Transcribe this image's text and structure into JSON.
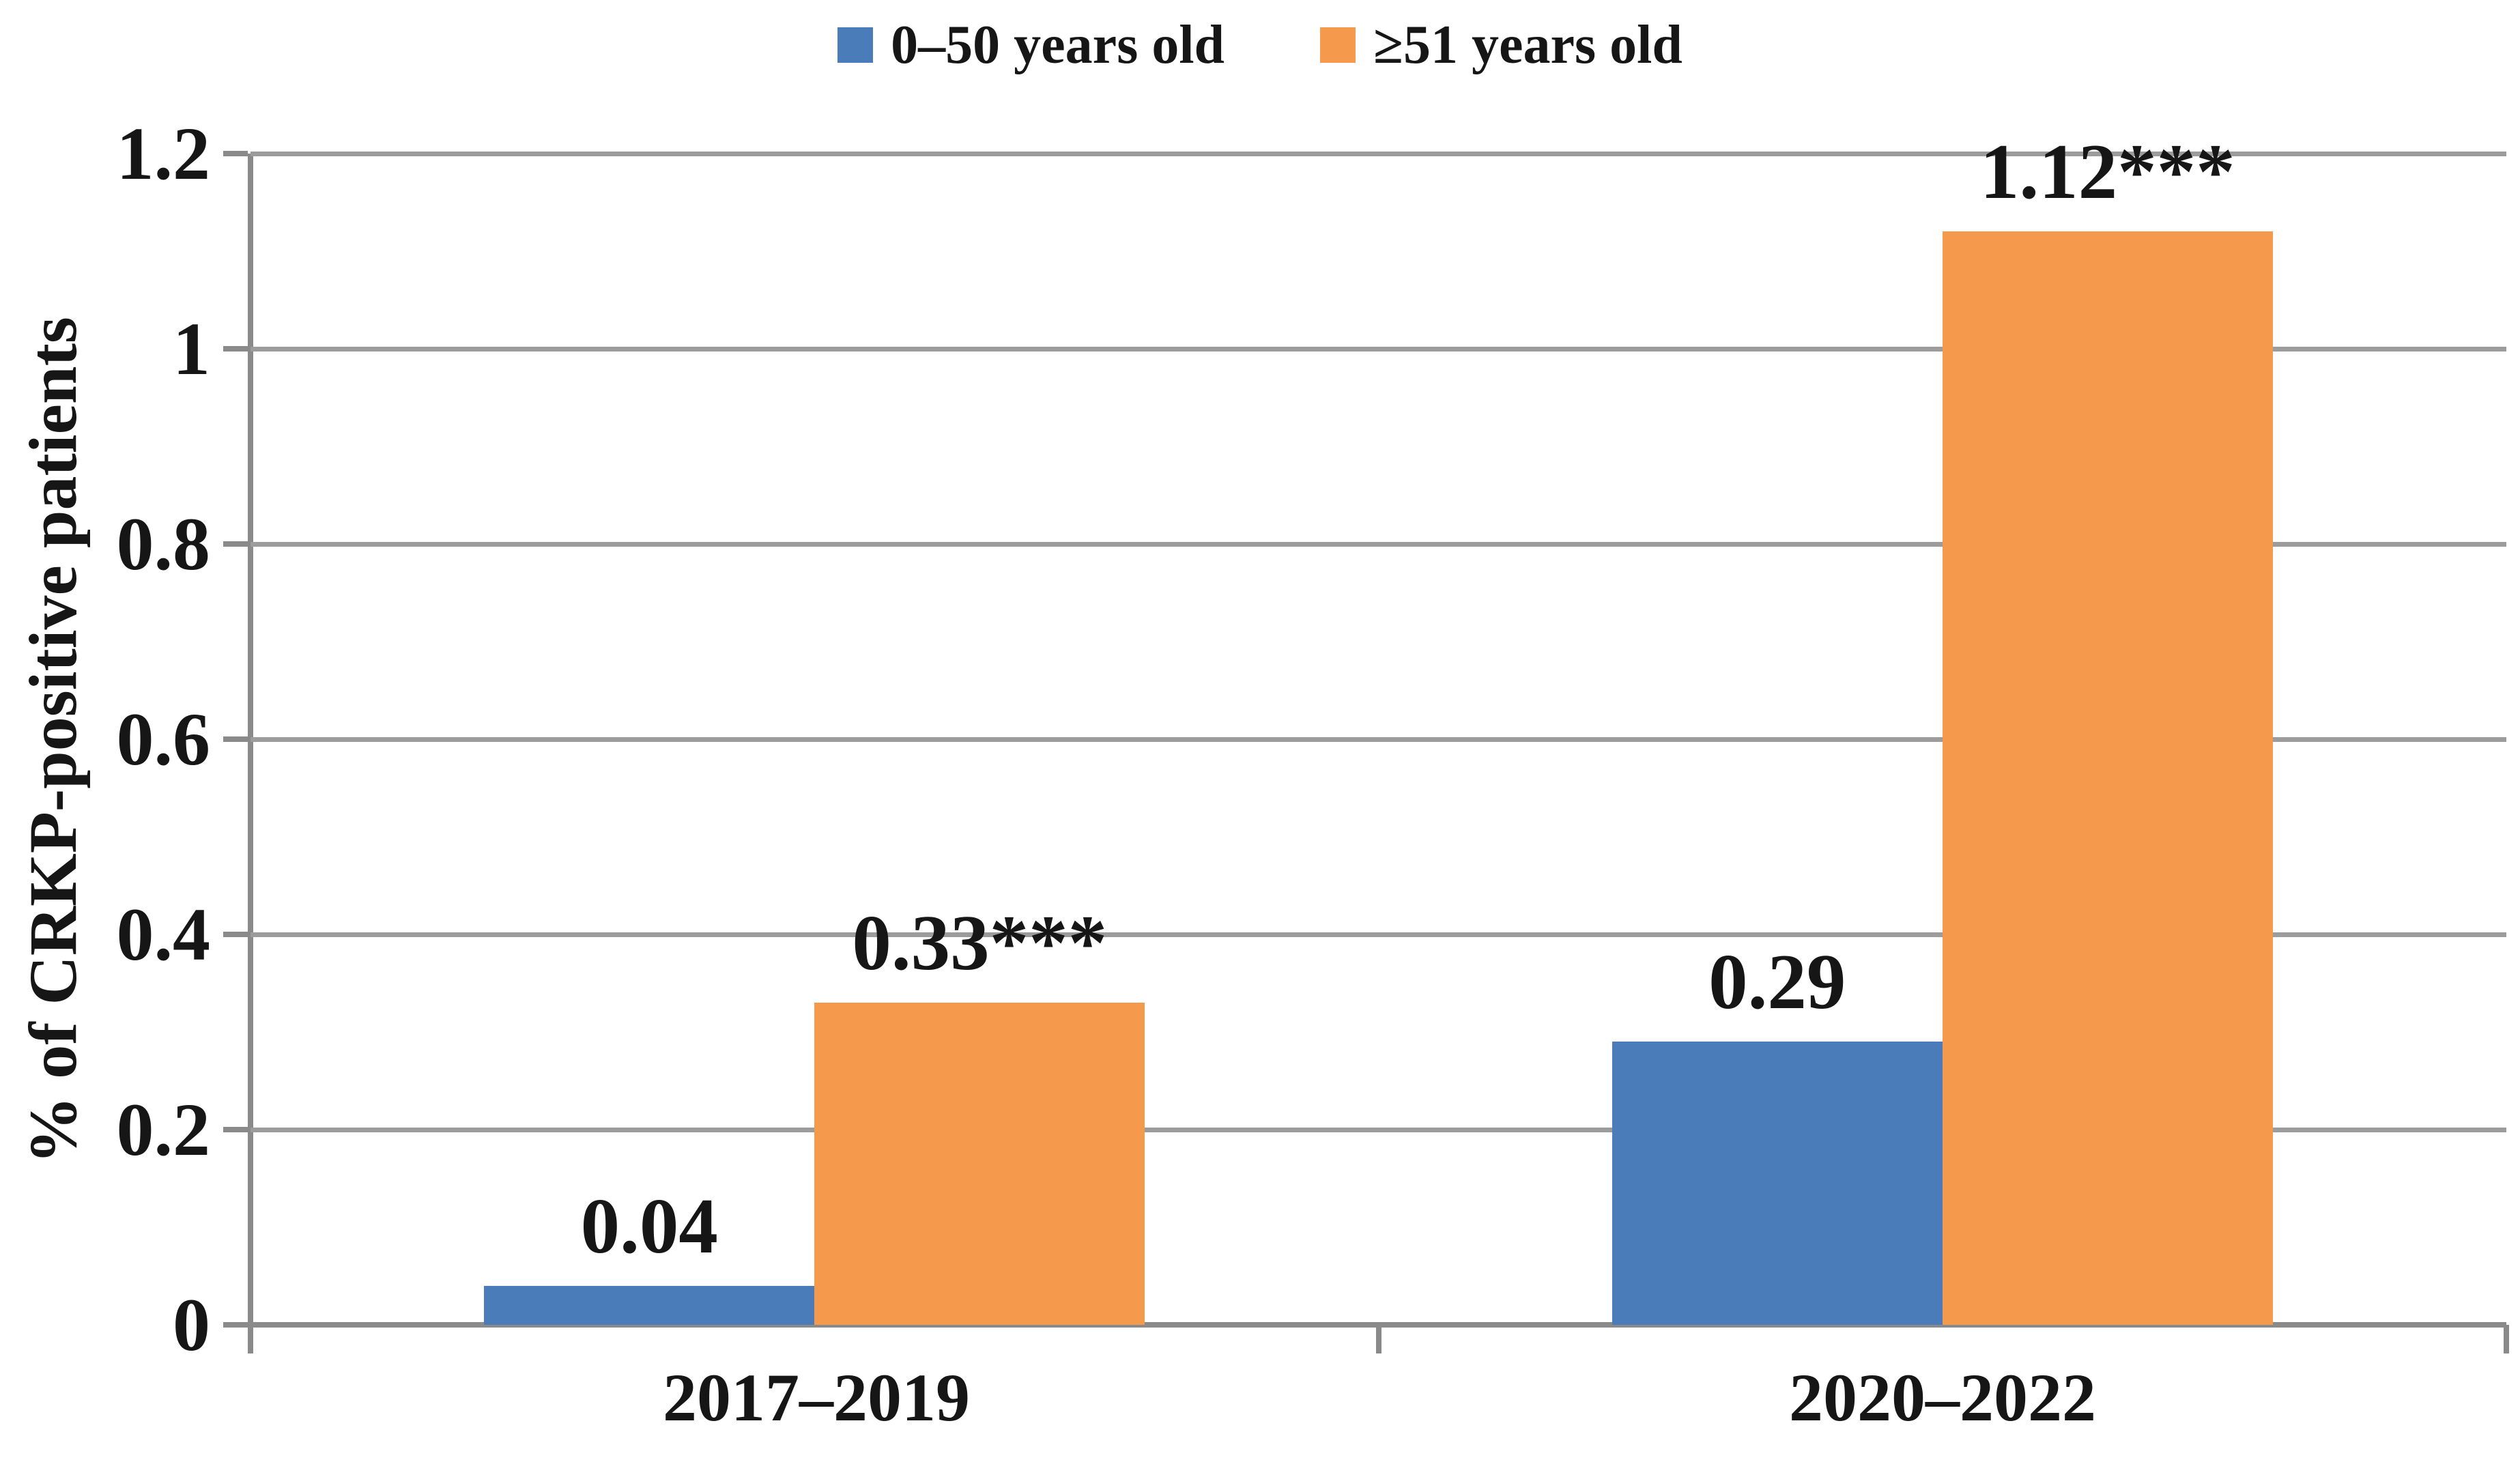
{
  "chart_data": {
    "type": "bar",
    "title": "",
    "categories": [
      "2017–2019",
      "2020–2022"
    ],
    "series": [
      {
        "name": "0–50 years old",
        "color": "#4A7CBA",
        "values": [
          0.04,
          0.29
        ],
        "data_labels": [
          "0.04",
          "0.29"
        ]
      },
      {
        "name": "≥51 years old",
        "color": "#F5994C",
        "values": [
          0.33,
          1.12
        ],
        "data_labels": [
          "0.33***",
          "1.12***"
        ]
      }
    ],
    "xlabel": "",
    "ylabel": "% of CRKP-positive patients",
    "ylim": [
      0,
      1.2
    ],
    "yticks": [
      0,
      0.2,
      0.4,
      0.6,
      0.8,
      1,
      1.2
    ],
    "ytick_labels": [
      "0",
      "0.2",
      "0.4",
      "0.6",
      "0.8",
      "1",
      "1.2"
    ],
    "grid": "horizontal",
    "legend_position": "top",
    "annotation_note": "***"
  },
  "style": {
    "gridline_color": "#9c9c9c",
    "axis_color": "#8a8a8a",
    "text_color": "#161616",
    "background": "#ffffff"
  }
}
